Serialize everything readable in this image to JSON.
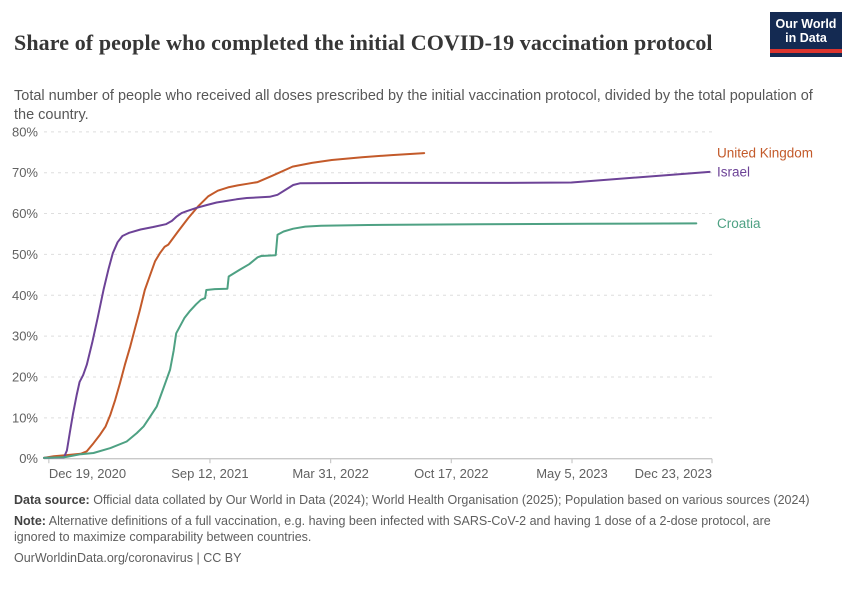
{
  "header": {
    "title": "Share of people who completed the initial COVID-19 vaccination protocol",
    "logo": {
      "line1": "Our World",
      "line2": "in Data"
    }
  },
  "subtitle": "Total number of people who received all doses prescribed by the initial vaccination protocol, divided by the total population of the country.",
  "colors": {
    "grid": "#dedede",
    "axis": "#c9c9c9",
    "tick_text": "#616161",
    "logo_bg": "#142A52",
    "logo_red": "#DC352E"
  },
  "chart_data": {
    "type": "line",
    "title": "Share of people who completed the initial COVID-19 vaccination protocol",
    "legend_position": "right",
    "grid": "dashed-horizontal",
    "x_axis": {
      "start": "2020-12-11",
      "end": "2023-12-23",
      "ticks": [
        "Dec 19, 2020",
        "Sep 12, 2021",
        "Mar 31, 2022",
        "Oct 17, 2022",
        "May 5, 2023",
        "Dec 23, 2023"
      ],
      "tick_dates": [
        "2020-12-19",
        "2021-09-12",
        "2022-03-31",
        "2022-10-17",
        "2023-05-05",
        "2023-12-23"
      ]
    },
    "y_axis": {
      "tick_values": [
        0,
        10,
        20,
        30,
        40,
        50,
        60,
        70,
        80
      ],
      "tick_labels": [
        "0%",
        "10%",
        "20%",
        "30%",
        "40%",
        "50%",
        "60%",
        "70%",
        "80%"
      ],
      "ylim": [
        0,
        82
      ],
      "format": "percent"
    },
    "series": [
      {
        "name": "United Kingdom",
        "color": "#C35A2A",
        "points": [
          [
            "2020-12-11",
            0.2
          ],
          [
            "2020-12-27",
            0.6
          ],
          [
            "2021-01-20",
            0.9
          ],
          [
            "2021-02-10",
            1.2
          ],
          [
            "2021-02-20",
            1.8
          ],
          [
            "2021-03-03",
            3.8
          ],
          [
            "2021-03-14",
            5.9
          ],
          [
            "2021-03-23",
            7.9
          ],
          [
            "2021-03-31",
            10.8
          ],
          [
            "2021-04-08",
            14.4
          ],
          [
            "2021-04-16",
            18.5
          ],
          [
            "2021-04-24",
            23
          ],
          [
            "2021-05-03",
            27.5
          ],
          [
            "2021-05-11",
            32
          ],
          [
            "2021-05-19",
            36.4
          ],
          [
            "2021-05-27",
            41.3
          ],
          [
            "2021-06-05",
            45
          ],
          [
            "2021-06-13",
            48.3
          ],
          [
            "2021-06-21",
            50.3
          ],
          [
            "2021-06-29",
            51.9
          ],
          [
            "2021-07-05",
            52.4
          ],
          [
            "2021-07-21",
            55.6
          ],
          [
            "2021-08-07",
            58.9
          ],
          [
            "2021-08-23",
            61.7
          ],
          [
            "2021-09-09",
            64.2
          ],
          [
            "2021-09-25",
            65.6
          ],
          [
            "2021-10-12",
            66.4
          ],
          [
            "2021-10-28",
            66.9
          ],
          [
            "2021-11-14",
            67.3
          ],
          [
            "2021-11-30",
            67.7
          ],
          [
            "2021-12-25",
            69.3
          ],
          [
            "2022-01-27",
            71.5
          ],
          [
            "2022-02-28",
            72.4
          ],
          [
            "2022-04-02",
            73.1
          ],
          [
            "2022-05-22",
            73.8
          ],
          [
            "2022-07-10",
            74.3
          ],
          [
            "2022-09-02",
            74.8
          ]
        ]
      },
      {
        "name": "Israel",
        "color": "#6D4397",
        "points": [
          [
            "2020-12-11",
            0.2
          ],
          [
            "2021-01-13",
            0.3
          ],
          [
            "2021-01-18",
            2
          ],
          [
            "2021-01-23",
            6.5
          ],
          [
            "2021-01-28",
            11
          ],
          [
            "2021-02-03",
            15.5
          ],
          [
            "2021-02-08",
            18.8
          ],
          [
            "2021-02-14",
            20.5
          ],
          [
            "2021-02-20",
            23
          ],
          [
            "2021-03-01",
            28.5
          ],
          [
            "2021-03-10",
            34.5
          ],
          [
            "2021-03-20",
            41.5
          ],
          [
            "2021-03-28",
            46.5
          ],
          [
            "2021-04-04",
            50.3
          ],
          [
            "2021-04-12",
            53
          ],
          [
            "2021-04-20",
            54.5
          ],
          [
            "2021-05-01",
            55.3
          ],
          [
            "2021-05-20",
            56.1
          ],
          [
            "2021-06-10",
            56.7
          ],
          [
            "2021-07-01",
            57.4
          ],
          [
            "2021-07-11",
            58.2
          ],
          [
            "2021-07-19",
            59.3
          ],
          [
            "2021-07-27",
            60.1
          ],
          [
            "2021-08-05",
            60.6
          ],
          [
            "2021-08-21",
            61.4
          ],
          [
            "2021-09-07",
            62.1
          ],
          [
            "2021-09-23",
            62.7
          ],
          [
            "2021-10-10",
            63.1
          ],
          [
            "2021-10-26",
            63.5
          ],
          [
            "2021-11-12",
            63.8
          ],
          [
            "2021-12-20",
            64.1
          ],
          [
            "2022-01-02",
            64.6
          ],
          [
            "2022-01-15",
            65.8
          ],
          [
            "2022-01-28",
            67.0
          ],
          [
            "2022-02-08",
            67.4
          ],
          [
            "2022-06-01",
            67.5
          ],
          [
            "2023-01-01",
            67.5
          ],
          [
            "2023-05-04",
            67.6
          ],
          [
            "2023-12-19",
            70.2
          ]
        ]
      },
      {
        "name": "Croatia",
        "color": "#4EA183",
        "points": [
          [
            "2020-12-11",
            0.2
          ],
          [
            "2021-01-15",
            0.4
          ],
          [
            "2021-02-10",
            1.1
          ],
          [
            "2021-03-03",
            1.4
          ],
          [
            "2021-03-31",
            2.6
          ],
          [
            "2021-04-27",
            4.2
          ],
          [
            "2021-05-14",
            6.3
          ],
          [
            "2021-05-25",
            7.9
          ],
          [
            "2021-06-05",
            10.3
          ],
          [
            "2021-06-16",
            12.8
          ],
          [
            "2021-06-27",
            17.3
          ],
          [
            "2021-07-08",
            21.8
          ],
          [
            "2021-07-14",
            26.5
          ],
          [
            "2021-07-18",
            30.7
          ],
          [
            "2021-08-01",
            34.5
          ],
          [
            "2021-08-09",
            36.0
          ],
          [
            "2021-08-20",
            37.8
          ],
          [
            "2021-08-28",
            38.9
          ],
          [
            "2021-09-04",
            39.3
          ],
          [
            "2021-09-06",
            41.3
          ],
          [
            "2021-09-20",
            41.5
          ],
          [
            "2021-10-11",
            41.6
          ],
          [
            "2021-10-13",
            44.6
          ],
          [
            "2021-10-31",
            46.2
          ],
          [
            "2021-11-16",
            47.6
          ],
          [
            "2021-11-30",
            49.3
          ],
          [
            "2021-12-06",
            49.6
          ],
          [
            "2021-12-30",
            49.8
          ],
          [
            "2022-01-02",
            54.8
          ],
          [
            "2022-01-12",
            55.6
          ],
          [
            "2022-01-28",
            56.3
          ],
          [
            "2022-02-17",
            56.8
          ],
          [
            "2022-03-15",
            57.0
          ],
          [
            "2022-06-01",
            57.2
          ],
          [
            "2022-12-01",
            57.4
          ],
          [
            "2023-06-01",
            57.5
          ],
          [
            "2023-11-27",
            57.6
          ]
        ]
      }
    ]
  },
  "footer": {
    "data_source_label": "Data source:",
    "data_source_text": " Official data collated by Our World in Data (2024); World Health Organisation (2025); Population based on various sources (2024)",
    "note_label": "Note:",
    "note_text": " Alternative definitions of a full vaccination, e.g. having been infected with SARS-CoV-2 and having 1 dose of a 2-dose protocol, are ignored to maximize comparability between countries.",
    "license": "OurWorldinData.org/coronavirus | CC BY"
  }
}
